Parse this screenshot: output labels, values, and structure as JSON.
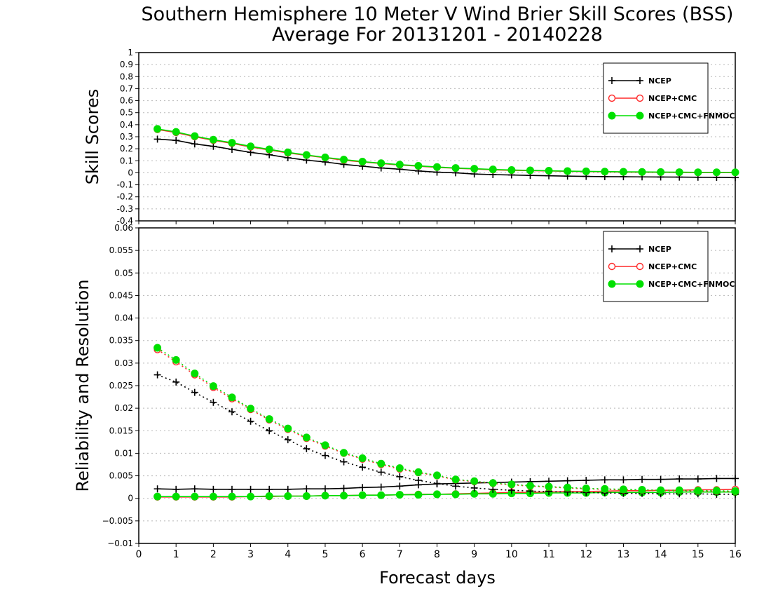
{
  "title_line1": "Southern Hemisphere 10 Meter V Wind Brier Skill Scores (BSS)",
  "title_line2": "Average For 20131201 - 20140228",
  "colors": {
    "ncep": "#000000",
    "ncep_cmc": "#ff2a2a",
    "ncep_cmc_fnmoc": "#00e000"
  },
  "chart_data": [
    {
      "type": "line",
      "ylabel": "Skill Scores",
      "xlabel": "",
      "xlim": [
        0,
        16
      ],
      "ylim": [
        -0.4,
        1
      ],
      "yticks": [
        "1",
        "0.9",
        "0.8",
        "0.7",
        "0.6",
        "0.5",
        "0.4",
        "0.3",
        "0.2",
        "0.1",
        "0",
        "-0.1",
        "-0.2",
        "-0.3",
        "-0.4"
      ],
      "grid": true,
      "legend_position": "top-right",
      "x": [
        0.5,
        1,
        1.5,
        2,
        2.5,
        3,
        3.5,
        4,
        4.5,
        5,
        5.5,
        6,
        6.5,
        7,
        7.5,
        8,
        8.5,
        9,
        9.5,
        10,
        10.5,
        11,
        11.5,
        12,
        12.5,
        13,
        13.5,
        14,
        14.5,
        15,
        15.5,
        16
      ],
      "series": [
        {
          "name": "NCEP",
          "style": "solid",
          "marker": "plus",
          "color": "#000000",
          "values": [
            0.28,
            0.27,
            0.24,
            0.22,
            0.195,
            0.17,
            0.15,
            0.125,
            0.105,
            0.09,
            0.07,
            0.055,
            0.04,
            0.03,
            0.015,
            0.005,
            0,
            -0.01,
            -0.015,
            -0.018,
            -0.022,
            -0.025,
            -0.028,
            -0.03,
            -0.032,
            -0.033,
            -0.034,
            -0.035,
            -0.036,
            -0.037,
            -0.038,
            -0.04
          ]
        },
        {
          "name": "NCEP+CMC",
          "style": "solid",
          "marker": "open-circle",
          "color": "#ff2a2a",
          "values": [
            0.36,
            0.335,
            0.3,
            0.27,
            0.245,
            0.215,
            0.19,
            0.165,
            0.145,
            0.125,
            0.105,
            0.09,
            0.077,
            0.065,
            0.055,
            0.045,
            0.038,
            0.032,
            0.025,
            0.02,
            0.018,
            0.015,
            0.012,
            0.01,
            0.008,
            0.006,
            0.005,
            0.004,
            0.003,
            0.002,
            0.002,
            0.002
          ]
        },
        {
          "name": "NCEP+CMC+FNMOC",
          "style": "solid",
          "marker": "filled-circle",
          "color": "#00e000",
          "values": [
            0.365,
            0.34,
            0.305,
            0.275,
            0.25,
            0.22,
            0.195,
            0.17,
            0.148,
            0.128,
            0.11,
            0.093,
            0.08,
            0.068,
            0.058,
            0.048,
            0.04,
            0.034,
            0.028,
            0.023,
            0.02,
            0.017,
            0.014,
            0.012,
            0.01,
            0.008,
            0.007,
            0.006,
            0.005,
            0.004,
            0.004,
            0.004
          ]
        }
      ]
    },
    {
      "type": "line",
      "ylabel": "Reliability and Resolution",
      "xlabel": "Forecast days",
      "xlim": [
        0,
        16
      ],
      "ylim": [
        -0.01,
        0.06
      ],
      "yticks": [
        "0.06",
        "0.055",
        "0.05",
        "0.045",
        "0.04",
        "0.035",
        "0.03",
        "0.025",
        "0.02",
        "0.015",
        "0.01",
        "0.005",
        "0",
        "−0.005",
        "−0.01"
      ],
      "xticks": [
        "0",
        "1",
        "2",
        "3",
        "4",
        "5",
        "6",
        "7",
        "8",
        "9",
        "10",
        "11",
        "12",
        "13",
        "14",
        "15",
        "16"
      ],
      "grid": true,
      "legend_position": "top-right",
      "x": [
        0.5,
        1,
        1.5,
        2,
        2.5,
        3,
        3.5,
        4,
        4.5,
        5,
        5.5,
        6,
        6.5,
        7,
        7.5,
        8,
        8.5,
        9,
        9.5,
        10,
        10.5,
        11,
        11.5,
        12,
        12.5,
        13,
        13.5,
        14,
        14.5,
        15,
        15.5,
        16
      ],
      "series": [
        {
          "name": "NCEP",
          "component": "reliability",
          "style": "solid",
          "marker": "plus",
          "color": "#000000",
          "values": [
            0.0021,
            0.002,
            0.0021,
            0.002,
            0.002,
            0.002,
            0.002,
            0.002,
            0.0021,
            0.0021,
            0.0022,
            0.0024,
            0.0025,
            0.0027,
            0.003,
            0.0032,
            0.0033,
            0.0034,
            0.0035,
            0.0036,
            0.0037,
            0.0038,
            0.0039,
            0.004,
            0.0041,
            0.0041,
            0.0042,
            0.0042,
            0.0043,
            0.0043,
            0.0044,
            0.0044
          ]
        },
        {
          "name": "NCEP+CMC",
          "component": "reliability",
          "style": "solid",
          "marker": "open-circle",
          "color": "#ff2a2a",
          "values": [
            0.0003,
            0.0003,
            0.0003,
            0.0003,
            0.0003,
            0.0004,
            0.0004,
            0.0005,
            0.0005,
            0.0006,
            0.0006,
            0.0007,
            0.0007,
            0.0008,
            0.0009,
            0.0009,
            0.001,
            0.0011,
            0.0012,
            0.0013,
            0.0013,
            0.0014,
            0.0015,
            0.0015,
            0.0016,
            0.0017,
            0.0017,
            0.0018,
            0.0018,
            0.0019,
            0.0019,
            0.002
          ]
        },
        {
          "name": "NCEP+CMC+FNMOC",
          "component": "reliability",
          "style": "solid",
          "marker": "filled-circle",
          "color": "#00e000",
          "values": [
            0.0004,
            0.0004,
            0.0004,
            0.0004,
            0.0004,
            0.0004,
            0.0005,
            0.0005,
            0.0005,
            0.0006,
            0.0006,
            0.0007,
            0.0007,
            0.0008,
            0.0008,
            0.0009,
            0.0009,
            0.001,
            0.001,
            0.0011,
            0.0011,
            0.0012,
            0.0012,
            0.0012,
            0.0013,
            0.0013,
            0.0013,
            0.0013,
            0.0014,
            0.0014,
            0.0014,
            0.0014
          ]
        },
        {
          "name": "NCEP",
          "component": "resolution",
          "style": "dotted",
          "marker": "plus",
          "color": "#000000",
          "values": [
            0.0274,
            0.0258,
            0.0235,
            0.0213,
            0.0192,
            0.0171,
            0.015,
            0.013,
            0.011,
            0.0095,
            0.0081,
            0.0069,
            0.0058,
            0.0048,
            0.004,
            0.0033,
            0.0027,
            0.0023,
            0.002,
            0.0018,
            0.0016,
            0.0015,
            0.0014,
            0.0013,
            0.0012,
            0.0011,
            0.0011,
            0.001,
            0.001,
            0.001,
            0.0009,
            0.0009
          ]
        },
        {
          "name": "NCEP+CMC",
          "component": "resolution",
          "style": "dotted",
          "marker": "open-circle",
          "color": "#ff2a2a",
          "values": [
            0.033,
            0.0303,
            0.0274,
            0.0246,
            0.0221,
            0.0197,
            0.0174,
            0.0153,
            0.0133,
            0.0116,
            0.01,
            0.0087,
            0.0075,
            0.0065,
            0.0057,
            0.005,
            0.0041,
            0.0037,
            0.0033,
            0.003,
            0.0027,
            0.0025,
            0.0023,
            0.0021,
            0.002,
            0.0019,
            0.0018,
            0.0017,
            0.0017,
            0.0016,
            0.0016,
            0.0015
          ]
        },
        {
          "name": "NCEP+CMC+FNMOC",
          "component": "resolution",
          "style": "dotted",
          "marker": "filled-circle",
          "color": "#00e000",
          "values": [
            0.0334,
            0.0307,
            0.0277,
            0.0249,
            0.0224,
            0.0199,
            0.0176,
            0.0155,
            0.0135,
            0.0118,
            0.0101,
            0.0089,
            0.0077,
            0.0067,
            0.0058,
            0.0051,
            0.0042,
            0.0038,
            0.0034,
            0.0031,
            0.0028,
            0.0026,
            0.0024,
            0.0022,
            0.0021,
            0.002,
            0.0019,
            0.0018,
            0.0018,
            0.0017,
            0.0017,
            0.0016
          ]
        }
      ]
    }
  ]
}
